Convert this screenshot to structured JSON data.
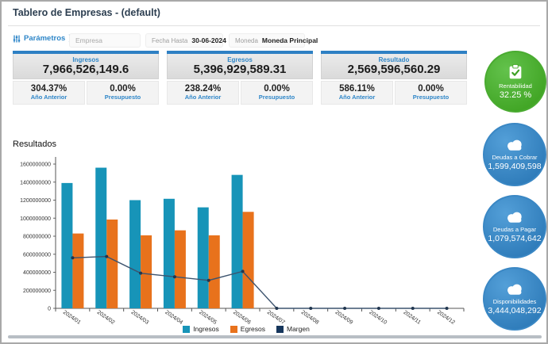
{
  "header": {
    "title": "Tablero de Empresas - (default)"
  },
  "params": {
    "label": "Parámetros",
    "chevron": "⟩",
    "empresa_placeholder": "Empresa",
    "fecha_label": "Fecha Hasta",
    "fecha_value": "30-06-2024",
    "moneda_label": "Moneda",
    "moneda_value": "Moneda Principal"
  },
  "kpis": [
    {
      "title": "Ingresos",
      "value": "7,966,526,149.6",
      "prev_pct": "304.37%",
      "prev_label": "Año Anterior",
      "budget_pct": "0.00%",
      "budget_label": "Presupuesto"
    },
    {
      "title": "Egresos",
      "value": "5,396,929,589.31",
      "prev_pct": "238.24%",
      "prev_label": "Año Anterior",
      "budget_pct": "0.00%",
      "budget_label": "Presupuesto"
    },
    {
      "title": "Resultado",
      "value": "2,569,596,560.29",
      "prev_pct": "586.11%",
      "prev_label": "Año Anterior",
      "budget_pct": "0.00%",
      "budget_label": "Presupuesto"
    }
  ],
  "badges": [
    {
      "name": "Rentabilidad",
      "value": "32.25 %",
      "color": "#42a626",
      "icon": "clipboard-check-icon"
    },
    {
      "name": "Deudas a Cobrar",
      "value": "1,599,409,598",
      "color": "#2f7cba",
      "icon": "cloud-icon"
    },
    {
      "name": "Deudas a Pagar",
      "value": "1,079,574,642",
      "color": "#2f7cba",
      "icon": "cloud-icon"
    },
    {
      "name": "Disponibilidades",
      "value": "3,444,048,292",
      "color": "#2f7cba",
      "icon": "cloud-icon"
    }
  ],
  "chart_data": {
    "type": "bar",
    "title": "Resultados",
    "categories": [
      "2024/01",
      "2024/02",
      "2024/03",
      "2024/04",
      "2024/05",
      "2024/06",
      "2024/07",
      "2024/08",
      "2024/09",
      "2024/10",
      "2024/11",
      "2024/12"
    ],
    "series": [
      {
        "name": "Ingresos",
        "type": "bar",
        "color": "#1794b8",
        "values": [
          1390000000,
          1560000000,
          1200000000,
          1215000000,
          1120000000,
          1480000000,
          0,
          0,
          0,
          0,
          0,
          0
        ]
      },
      {
        "name": "Egresos",
        "type": "bar",
        "color": "#e8721c",
        "values": [
          830000000,
          985000000,
          810000000,
          865000000,
          810000000,
          1070000000,
          0,
          0,
          0,
          0,
          0,
          0
        ]
      },
      {
        "name": "Margen",
        "type": "line",
        "color": "#3c536e",
        "marker_color": "#20354e",
        "swatch": "#16365c",
        "values": [
          560000000,
          575000000,
          390000000,
          350000000,
          310000000,
          410000000,
          0,
          0,
          0,
          0,
          0,
          0
        ]
      }
    ],
    "xlabel": "",
    "ylabel": "",
    "ylim": [
      0,
      1600000000
    ],
    "ytick_step": 200000000,
    "grid": false,
    "legend_position": "bottom",
    "x_label_rotation": 35
  }
}
